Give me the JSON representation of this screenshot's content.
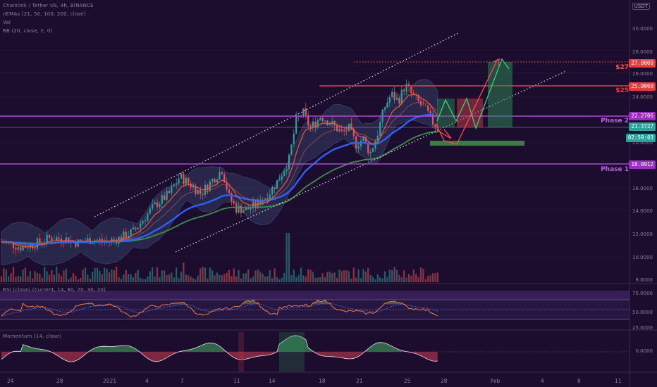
{
  "legend": {
    "symbol_line": "Chainlink / Tether US, 4h, BINANCE",
    "ema_line": "nEMAs (21, 50, 100, 200, close)",
    "vol_line": "Vol",
    "bb_line": "BB (20, close, 2, 0)",
    "rsi_line": "RSI (close) (Current, 14, 80, 70, 30, 20)",
    "mom_line": "Momentum (14, close)"
  },
  "currency": "USDT",
  "price_axis": [
    "30.0000",
    "28.0000",
    "26.0000",
    "24.0000",
    "20.0000",
    "16.0000",
    "14.0000",
    "12.0000",
    "10.0000",
    "8.0000"
  ],
  "price_pills": {
    "p27": "27.0000",
    "p25": "25.0000",
    "phase2": "22.2706",
    "current": "21.3727",
    "countdown": "02:59:03",
    "phase1": "18.0912"
  },
  "zone_labels": {
    "p27": "$27",
    "p25": "$25",
    "phase2": "Phase 2",
    "phase1": "Phase 1"
  },
  "rsi_axis": [
    "75.0000",
    "50.0000",
    "25.0000"
  ],
  "mom_axis": [
    "0.0000"
  ],
  "time_axis": [
    "24",
    "28",
    "2021",
    "4",
    "7",
    "11",
    "14",
    "18",
    "21",
    "25",
    "28",
    "Feb",
    "4",
    "8",
    "11"
  ],
  "colors": {
    "background": "#1c0d2e",
    "candle_up": "#26a69a",
    "candle_down": "#ef5350",
    "phase_line": "#b045d6",
    "target_line": "#ef3b3b",
    "ema_fast": "#e85a3a",
    "ema_mid": "#2962ff",
    "ema_slow": "#3f8f4a",
    "bb_fill": "#35406a",
    "channel": "#e8e0ee"
  }
}
